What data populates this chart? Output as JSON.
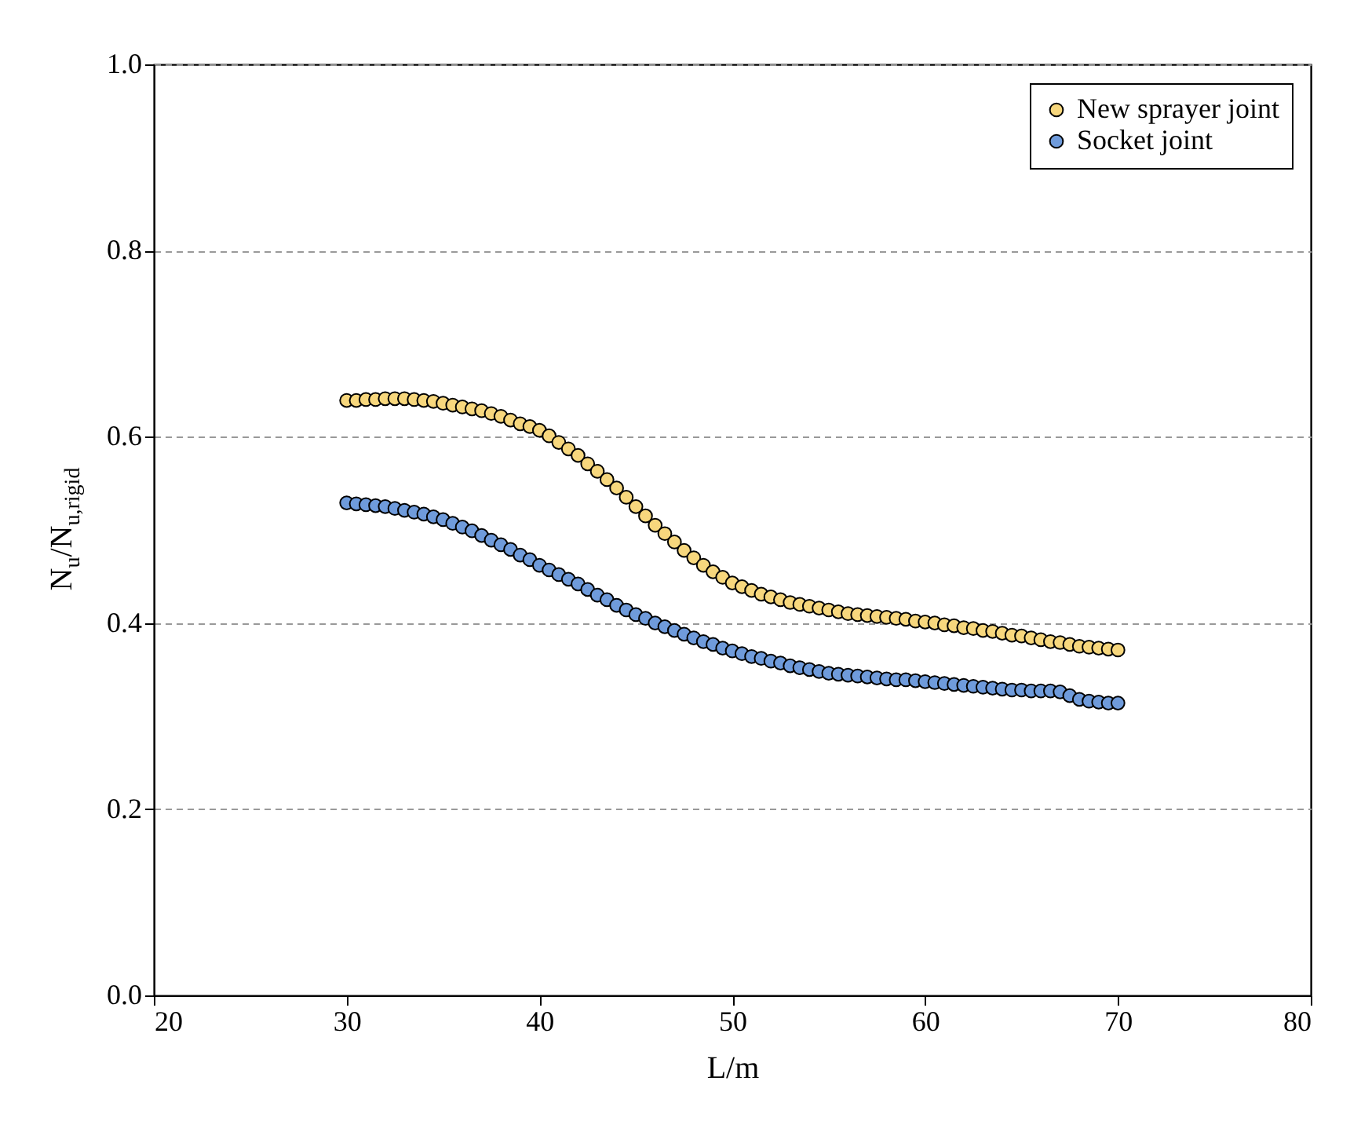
{
  "chart_data": {
    "type": "scatter",
    "xlabel": "L/m",
    "ylabel": "N$_{u}$/N$_{u,rigid}$",
    "x": [
      30,
      30.5,
      31,
      31.5,
      32,
      32.5,
      33,
      33.5,
      34,
      34.5,
      35,
      35.5,
      36,
      36.5,
      37,
      37.5,
      38,
      38.5,
      39,
      39.5,
      40,
      40.5,
      41,
      41.5,
      42,
      42.5,
      43,
      43.5,
      44,
      44.5,
      45,
      45.5,
      46,
      46.5,
      47,
      47.5,
      48,
      48.5,
      49,
      49.5,
      50,
      50.5,
      51,
      51.5,
      52,
      52.5,
      53,
      53.5,
      54,
      54.5,
      55,
      55.5,
      56,
      56.5,
      57,
      57.5,
      58,
      58.5,
      59,
      59.5,
      60,
      60.5,
      61,
      61.5,
      62,
      62.5,
      63,
      63.5,
      64,
      64.5,
      65,
      65.5,
      66,
      66.5,
      67,
      67.5,
      68,
      68.5,
      69,
      69.5,
      70
    ],
    "series": [
      {
        "name": "New sprayer joint",
        "color": "#f7d77d",
        "values": [
          0.639,
          0.639,
          0.64,
          0.64,
          0.641,
          0.641,
          0.641,
          0.64,
          0.639,
          0.638,
          0.636,
          0.634,
          0.632,
          0.63,
          0.628,
          0.625,
          0.622,
          0.618,
          0.614,
          0.611,
          0.607,
          0.601,
          0.594,
          0.587,
          0.58,
          0.571,
          0.563,
          0.554,
          0.545,
          0.535,
          0.525,
          0.515,
          0.505,
          0.496,
          0.487,
          0.478,
          0.47,
          0.462,
          0.455,
          0.449,
          0.443,
          0.439,
          0.435,
          0.431,
          0.428,
          0.425,
          0.422,
          0.42,
          0.418,
          0.416,
          0.414,
          0.412,
          0.41,
          0.409,
          0.408,
          0.407,
          0.406,
          0.405,
          0.404,
          0.402,
          0.401,
          0.4,
          0.398,
          0.397,
          0.395,
          0.394,
          0.392,
          0.391,
          0.389,
          0.387,
          0.386,
          0.384,
          0.382,
          0.38,
          0.379,
          0.377,
          0.375,
          0.374,
          0.373,
          0.372,
          0.371
        ]
      },
      {
        "name": "Socket joint",
        "color": "#6f9bdb",
        "values": [
          0.529,
          0.528,
          0.527,
          0.526,
          0.525,
          0.523,
          0.521,
          0.519,
          0.517,
          0.514,
          0.511,
          0.507,
          0.503,
          0.499,
          0.494,
          0.489,
          0.484,
          0.479,
          0.473,
          0.468,
          0.462,
          0.457,
          0.452,
          0.447,
          0.442,
          0.436,
          0.43,
          0.425,
          0.419,
          0.414,
          0.409,
          0.405,
          0.4,
          0.396,
          0.392,
          0.388,
          0.384,
          0.38,
          0.377,
          0.373,
          0.37,
          0.367,
          0.364,
          0.362,
          0.359,
          0.357,
          0.354,
          0.352,
          0.35,
          0.348,
          0.346,
          0.345,
          0.344,
          0.343,
          0.342,
          0.341,
          0.34,
          0.339,
          0.339,
          0.338,
          0.337,
          0.336,
          0.335,
          0.334,
          0.333,
          0.332,
          0.331,
          0.33,
          0.329,
          0.328,
          0.328,
          0.327,
          0.327,
          0.327,
          0.326,
          0.322,
          0.318,
          0.316,
          0.315,
          0.314,
          0.314
        ]
      }
    ],
    "xlim": [
      20,
      80
    ],
    "xticks": [
      20,
      30,
      40,
      50,
      60,
      70,
      80
    ],
    "ylim": [
      0,
      1
    ],
    "yticks": [
      {
        "value": 0,
        "label": "0.0"
      },
      0.2,
      0.4,
      0.6,
      0.8,
      {
        "value": 1,
        "label": "1.0"
      }
    ],
    "grid": "y",
    "legend": "top right",
    "marker": "circle"
  }
}
